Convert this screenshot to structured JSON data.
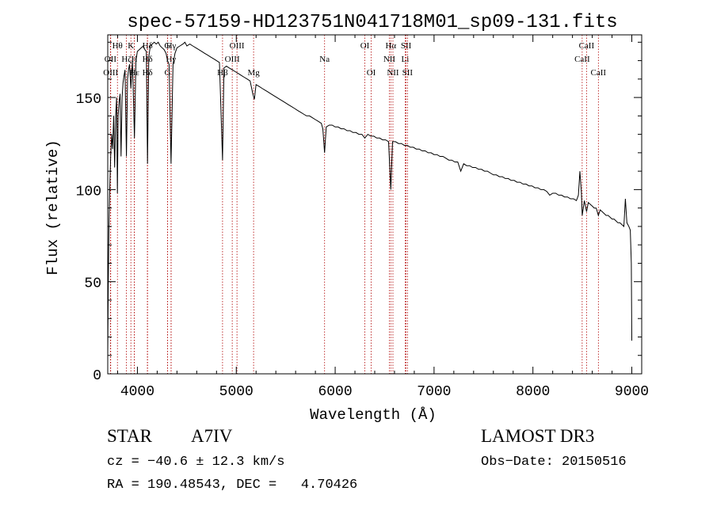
{
  "chart_data": {
    "type": "line",
    "title": "spec-57159-HD123751N041718M01_sp09-131.fits",
    "xlabel": "Wavelength (Å)",
    "ylabel": "Flux (relative)",
    "xlim": [
      3700,
      9100
    ],
    "ylim": [
      0,
      184
    ],
    "xticks": [
      4000,
      5000,
      6000,
      7000,
      8000,
      9000
    ],
    "yticks": [
      0,
      50,
      100,
      150
    ],
    "grid": false,
    "series": [
      {
        "points": [
          [
            3700,
            10
          ],
          [
            3705,
            45
          ],
          [
            3712,
            80
          ],
          [
            3720,
            100
          ],
          [
            3730,
            118
          ],
          [
            3740,
            130
          ],
          [
            3750,
            122
          ],
          [
            3760,
            140
          ],
          [
            3770,
            112
          ],
          [
            3780,
            140
          ],
          [
            3790,
            150
          ],
          [
            3798,
            98
          ],
          [
            3805,
            140
          ],
          [
            3815,
            148
          ],
          [
            3825,
            152
          ],
          [
            3835,
            118
          ],
          [
            3845,
            150
          ],
          [
            3855,
            158
          ],
          [
            3865,
            162
          ],
          [
            3875,
            165
          ],
          [
            3889,
            118
          ],
          [
            3900,
            160
          ],
          [
            3910,
            165
          ],
          [
            3920,
            168
          ],
          [
            3934,
            155
          ],
          [
            3950,
            170
          ],
          [
            3970,
            128
          ],
          [
            3985,
            170
          ],
          [
            4000,
            175
          ],
          [
            4020,
            176
          ],
          [
            4040,
            177
          ],
          [
            4060,
            178
          ],
          [
            4075,
            176
          ],
          [
            4090,
            175
          ],
          [
            4102,
            114
          ],
          [
            4115,
            172
          ],
          [
            4130,
            178
          ],
          [
            4150,
            179
          ],
          [
            4170,
            180
          ],
          [
            4190,
            179
          ],
          [
            4210,
            180
          ],
          [
            4230,
            178
          ],
          [
            4250,
            177
          ],
          [
            4270,
            176
          ],
          [
            4290,
            174
          ],
          [
            4305,
            170
          ],
          [
            4320,
            168
          ],
          [
            4340,
            114
          ],
          [
            4360,
            168
          ],
          [
            4380,
            174
          ],
          [
            4400,
            177
          ],
          [
            4430,
            178
          ],
          [
            4460,
            179
          ],
          [
            4480,
            180
          ],
          [
            4500,
            178
          ],
          [
            4530,
            179
          ],
          [
            4560,
            178
          ],
          [
            4590,
            177
          ],
          [
            4620,
            176
          ],
          [
            4650,
            175
          ],
          [
            4680,
            174
          ],
          [
            4710,
            173
          ],
          [
            4740,
            172
          ],
          [
            4770,
            171
          ],
          [
            4800,
            170
          ],
          [
            4830,
            169
          ],
          [
            4861,
            116
          ],
          [
            4875,
            166
          ],
          [
            4900,
            167
          ],
          [
            4930,
            166
          ],
          [
            4960,
            165
          ],
          [
            4990,
            164
          ],
          [
            5020,
            163
          ],
          [
            5050,
            162
          ],
          [
            5080,
            161
          ],
          [
            5110,
            160
          ],
          [
            5140,
            159
          ],
          [
            5167,
            152
          ],
          [
            5183,
            149
          ],
          [
            5200,
            157
          ],
          [
            5230,
            156
          ],
          [
            5260,
            155
          ],
          [
            5290,
            154
          ],
          [
            5320,
            153
          ],
          [
            5350,
            152
          ],
          [
            5380,
            151
          ],
          [
            5410,
            150
          ],
          [
            5440,
            149
          ],
          [
            5470,
            148
          ],
          [
            5500,
            147
          ],
          [
            5530,
            146
          ],
          [
            5560,
            145
          ],
          [
            5590,
            144
          ],
          [
            5620,
            143
          ],
          [
            5650,
            142
          ],
          [
            5680,
            141
          ],
          [
            5710,
            140
          ],
          [
            5740,
            140
          ],
          [
            5770,
            139
          ],
          [
            5800,
            138
          ],
          [
            5830,
            137
          ],
          [
            5860,
            136
          ],
          [
            5875,
            133
          ],
          [
            5893,
            120
          ],
          [
            5910,
            134
          ],
          [
            5940,
            135
          ],
          [
            5970,
            135
          ],
          [
            6000,
            134
          ],
          [
            6030,
            134
          ],
          [
            6060,
            133
          ],
          [
            6090,
            133
          ],
          [
            6120,
            132
          ],
          [
            6150,
            132
          ],
          [
            6180,
            131
          ],
          [
            6210,
            131
          ],
          [
            6240,
            130
          ],
          [
            6270,
            130
          ],
          [
            6300,
            128
          ],
          [
            6330,
            130
          ],
          [
            6360,
            129
          ],
          [
            6390,
            129
          ],
          [
            6420,
            128
          ],
          [
            6450,
            128
          ],
          [
            6480,
            127
          ],
          [
            6510,
            127
          ],
          [
            6540,
            126
          ],
          [
            6563,
            100
          ],
          [
            6580,
            126
          ],
          [
            6610,
            126
          ],
          [
            6640,
            125
          ],
          [
            6670,
            125
          ],
          [
            6700,
            124
          ],
          [
            6730,
            124
          ],
          [
            6760,
            123
          ],
          [
            6790,
            123
          ],
          [
            6820,
            122
          ],
          [
            6850,
            122
          ],
          [
            6880,
            121
          ],
          [
            6910,
            121
          ],
          [
            6940,
            120
          ],
          [
            6970,
            120
          ],
          [
            7000,
            119
          ],
          [
            7030,
            119
          ],
          [
            7060,
            118
          ],
          [
            7090,
            118
          ],
          [
            7120,
            117
          ],
          [
            7150,
            116
          ],
          [
            7180,
            116
          ],
          [
            7210,
            115
          ],
          [
            7240,
            115
          ],
          [
            7270,
            110
          ],
          [
            7300,
            114
          ],
          [
            7330,
            113
          ],
          [
            7360,
            113
          ],
          [
            7390,
            112
          ],
          [
            7420,
            112
          ],
          [
            7450,
            111
          ],
          [
            7480,
            111
          ],
          [
            7510,
            110
          ],
          [
            7540,
            110
          ],
          [
            7570,
            109
          ],
          [
            7600,
            108
          ],
          [
            7630,
            108
          ],
          [
            7660,
            107
          ],
          [
            7690,
            107
          ],
          [
            7720,
            106
          ],
          [
            7750,
            106
          ],
          [
            7780,
            105
          ],
          [
            7810,
            105
          ],
          [
            7840,
            104
          ],
          [
            7870,
            104
          ],
          [
            7900,
            103
          ],
          [
            7930,
            103
          ],
          [
            7960,
            102
          ],
          [
            7990,
            102
          ],
          [
            8020,
            101
          ],
          [
            8050,
            101
          ],
          [
            8080,
            100
          ],
          [
            8110,
            100
          ],
          [
            8140,
            99
          ],
          [
            8170,
            97
          ],
          [
            8200,
            98
          ],
          [
            8230,
            98
          ],
          [
            8260,
            97
          ],
          [
            8290,
            97
          ],
          [
            8320,
            96
          ],
          [
            8350,
            96
          ],
          [
            8380,
            95
          ],
          [
            8410,
            95
          ],
          [
            8440,
            94
          ],
          [
            8460,
            97
          ],
          [
            8475,
            110
          ],
          [
            8490,
            98
          ],
          [
            8498,
            86
          ],
          [
            8520,
            94
          ],
          [
            8542,
            88
          ],
          [
            8560,
            93
          ],
          [
            8580,
            92
          ],
          [
            8600,
            91
          ],
          [
            8620,
            90
          ],
          [
            8640,
            90
          ],
          [
            8662,
            86
          ],
          [
            8680,
            89
          ],
          [
            8700,
            88
          ],
          [
            8720,
            87
          ],
          [
            8740,
            86
          ],
          [
            8760,
            86
          ],
          [
            8780,
            85
          ],
          [
            8800,
            84
          ],
          [
            8820,
            84
          ],
          [
            8840,
            83
          ],
          [
            8860,
            82
          ],
          [
            8880,
            82
          ],
          [
            8900,
            81
          ],
          [
            8920,
            80
          ],
          [
            8935,
            95
          ],
          [
            8950,
            82
          ],
          [
            8970,
            80
          ],
          [
            8985,
            78
          ],
          [
            8995,
            60
          ],
          [
            9000,
            18
          ]
        ]
      }
    ],
    "lines": [
      {
        "label": "Hθ",
        "x": 3798,
        "row": 1
      },
      {
        "label": "OII",
        "x": 3727,
        "row": 2
      },
      {
        "label": "OIII",
        "x": 3730,
        "row": 3
      },
      {
        "label": "K",
        "x": 3934,
        "row": 1
      },
      {
        "label": "Hζ",
        "x": 3889,
        "row": 2
      },
      {
        "label": "H",
        "x": 3969,
        "row": 2
      },
      {
        "label": "Hε",
        "x": 3970,
        "row": 3
      },
      {
        "label": "Hδ",
        "x": 4102,
        "row": 1
      },
      {
        "label": "Hδ",
        "x": 4102,
        "row": 2
      },
      {
        "label": "Hδ",
        "x": 4102,
        "row": 3
      },
      {
        "label": "G",
        "x": 4304,
        "row": 1
      },
      {
        "label": "Hγ",
        "x": 4340,
        "row": 2
      },
      {
        "label": "G",
        "x": 4305,
        "row": 3
      },
      {
        "label": "Hγ",
        "x": 4341,
        "row": 1
      },
      {
        "label": "Hβ",
        "x": 4861,
        "row": 3
      },
      {
        "label": "OIII",
        "x": 5007,
        "row": 1
      },
      {
        "label": "OIII",
        "x": 4959,
        "row": 2
      },
      {
        "label": "Mg",
        "x": 5175,
        "row": 3
      },
      {
        "label": "Na",
        "x": 5893,
        "row": 2
      },
      {
        "label": "OI",
        "x": 6300,
        "row": 1
      },
      {
        "label": "OI",
        "x": 6364,
        "row": 3
      },
      {
        "label": "Hα",
        "x": 6563,
        "row": 1
      },
      {
        "label": "NII",
        "x": 6548,
        "row": 2
      },
      {
        "label": "NII",
        "x": 6584,
        "row": 3
      },
      {
        "label": "SII",
        "x": 6717,
        "row": 1
      },
      {
        "label": "Li",
        "x": 6708,
        "row": 2
      },
      {
        "label": "SII",
        "x": 6731,
        "row": 3
      },
      {
        "label": "CaII",
        "x": 8542,
        "row": 1
      },
      {
        "label": "CaII",
        "x": 8498,
        "row": 2
      },
      {
        "label": "CaII",
        "x": 8662,
        "row": 3
      }
    ]
  },
  "footer": {
    "object_class": "STAR",
    "subclass": "A7IV",
    "survey": "LAMOST DR3",
    "cz": "cz = −40.6 ± 12.3 km/s",
    "obs_date": "Obs−Date: 20150516",
    "coords": "RA = 190.48543, DEC =   4.70426"
  }
}
